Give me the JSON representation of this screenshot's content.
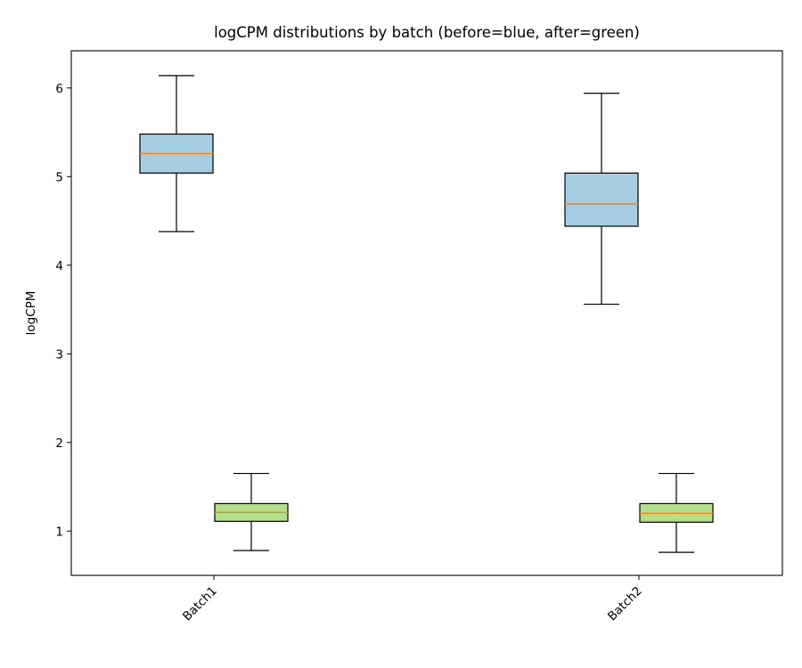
{
  "chart_data": {
    "type": "box",
    "title": "logCPM distributions by batch (before=blue, after=green)",
    "xlabel": "",
    "ylabel": "logCPM",
    "categories": [
      "Batch1",
      "Batch2"
    ],
    "ylim": [
      0.5,
      6.42
    ],
    "yticks": [
      1,
      2,
      3,
      4,
      5,
      6
    ],
    "grid": false,
    "series": [
      {
        "name": "before",
        "color": "#a6cee3",
        "boxes": [
          {
            "category": "Batch1",
            "whisker_low": 4.38,
            "q1": 5.04,
            "median": 5.26,
            "q3": 5.48,
            "whisker_high": 6.14
          },
          {
            "category": "Batch2",
            "whisker_low": 3.56,
            "q1": 4.44,
            "median": 4.69,
            "q3": 5.04,
            "whisker_high": 5.94
          }
        ]
      },
      {
        "name": "after",
        "color": "#b2df8a",
        "boxes": [
          {
            "category": "Batch1",
            "whisker_low": 0.78,
            "q1": 1.11,
            "median": 1.21,
            "q3": 1.31,
            "whisker_high": 1.65
          },
          {
            "category": "Batch2",
            "whisker_low": 0.76,
            "q1": 1.1,
            "median": 1.2,
            "q3": 1.31,
            "whisker_high": 1.65
          }
        ]
      }
    ],
    "median_color": "#ff7f0e"
  }
}
